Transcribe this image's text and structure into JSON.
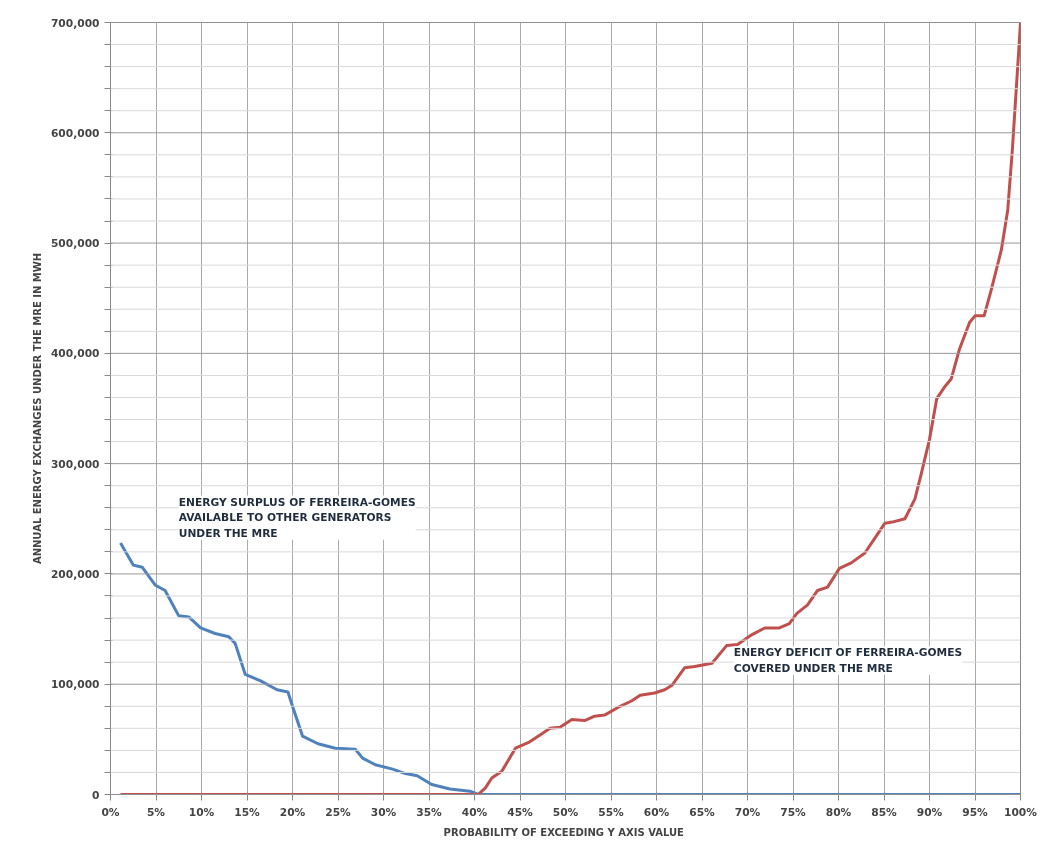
{
  "chart_data": {
    "type": "line",
    "xlabel": "PROBABILITY OF EXCEEDING  Y AXIS VALUE",
    "ylabel": "ANNUAL ENERGY EXCHANGES UNDER THE MRE IN MWH",
    "annotations": [
      "ENERGY SURPLUS OF FERREIRA-GOMES\nAVAILABLE TO OTHER GENERATORS\nUNDER THE MRE",
      "ENERGY DEFICIT OF FERREIRA-GOMES\nCOVERED UNDER THE MRE"
    ],
    "series": [
      {
        "color": "#4f81bd",
        "x": [
          1.1,
          2.5,
          3.5,
          4.9,
          6,
          7.5,
          8.6,
          9.9,
          11.5,
          13,
          13.7,
          14.8,
          16.5,
          18.3,
          19.5,
          20,
          21.1,
          22.8,
          24.7,
          26.9,
          27.7,
          29.1,
          31,
          32.4,
          33.7,
          35.3,
          37.3,
          39.5,
          40.4,
          100
        ],
        "values": [
          228000,
          208000,
          206000,
          190000,
          185000,
          162000,
          161000,
          151000,
          146000,
          143000,
          137000,
          109000,
          103000,
          95000,
          93000,
          80000,
          53000,
          46000,
          42000,
          41000,
          33000,
          27000,
          23000,
          19000,
          17000,
          9000,
          5000,
          3000,
          0,
          0
        ]
      },
      {
        "color": "#c0504d",
        "x": [
          1.1,
          40.4,
          41.2,
          41.9,
          43,
          44.5,
          45.9,
          47.2,
          48.3,
          49.4,
          50.7,
          52.1,
          53.2,
          54.3,
          56,
          57.3,
          58.2,
          59.8,
          60.9,
          61.7,
          63.1,
          64.2,
          66.1,
          67.7,
          68.9,
          70.5,
          71.9,
          73.5,
          74.6,
          75.4,
          76.6,
          77.7,
          78.8,
          80.1,
          81.4,
          82.9,
          84.2,
          85.1,
          85.9,
          87.3,
          88.4,
          89.1,
          90,
          90.8,
          91.7,
          92.4,
          93.3,
          94.4,
          95,
          96,
          96.8,
          97.9,
          98.6,
          99.1,
          99.6,
          100
        ],
        "values": [
          0,
          0,
          6000,
          15000,
          21000,
          42000,
          47000,
          54000,
          60000,
          61000,
          68000,
          67000,
          71000,
          72000,
          80000,
          85000,
          90000,
          92000,
          95000,
          99000,
          115000,
          116000,
          119000,
          135000,
          136000,
          145000,
          151000,
          151000,
          155000,
          164000,
          172000,
          185000,
          188000,
          205000,
          210000,
          219000,
          235000,
          246000,
          247000,
          250000,
          268000,
          291000,
          322000,
          359000,
          370000,
          377000,
          404000,
          428000,
          434000,
          434000,
          458000,
          494000,
          530000,
          584000,
          648000,
          700000
        ]
      }
    ],
    "xlim": [
      0,
      100
    ],
    "xticks": [
      {
        "value": 0,
        "label": "0%"
      },
      {
        "value": 5,
        "label": "5%"
      },
      {
        "value": 10,
        "label": "10%"
      },
      {
        "value": 15,
        "label": "15%"
      },
      {
        "value": 20,
        "label": "20%"
      },
      {
        "value": 25,
        "label": "25%"
      },
      {
        "value": 30,
        "label": "30%"
      },
      {
        "value": 35,
        "label": "35%"
      },
      {
        "value": 40,
        "label": "40%"
      },
      {
        "value": 45,
        "label": "45%"
      },
      {
        "value": 50,
        "label": "50%"
      },
      {
        "value": 55,
        "label": "55%"
      },
      {
        "value": 60,
        "label": "60%"
      },
      {
        "value": 65,
        "label": "65%"
      },
      {
        "value": 70,
        "label": "70%"
      },
      {
        "value": 75,
        "label": "75%"
      },
      {
        "value": 80,
        "label": "80%"
      },
      {
        "value": 85,
        "label": "85%"
      },
      {
        "value": 90,
        "label": "90%"
      },
      {
        "value": 95,
        "label": "95%"
      },
      {
        "value": 100,
        "label": "100%"
      }
    ],
    "ylim": [
      0,
      700000
    ],
    "yticks": [
      0,
      {
        "value": 20000,
        "label": null
      },
      {
        "value": 40000,
        "label": null
      },
      {
        "value": 60000,
        "label": null
      },
      {
        "value": 80000,
        "label": null
      },
      {
        "value": 100000,
        "label": "100,000"
      },
      {
        "value": 120000,
        "label": null
      },
      {
        "value": 140000,
        "label": null
      },
      {
        "value": 160000,
        "label": null
      },
      {
        "value": 180000,
        "label": null
      },
      {
        "value": 200000,
        "label": "200,000"
      },
      {
        "value": 220000,
        "label": null
      },
      {
        "value": 240000,
        "label": null
      },
      {
        "value": 260000,
        "label": null
      },
      {
        "value": 280000,
        "label": null
      },
      {
        "value": 300000,
        "label": "300,000"
      },
      {
        "value": 320000,
        "label": null
      },
      {
        "value": 340000,
        "label": null
      },
      {
        "value": 360000,
        "label": null
      },
      {
        "value": 380000,
        "label": null
      },
      {
        "value": 400000,
        "label": "400,000"
      },
      {
        "value": 420000,
        "label": null
      },
      {
        "value": 440000,
        "label": null
      },
      {
        "value": 460000,
        "label": null
      },
      {
        "value": 480000,
        "label": null
      },
      {
        "value": 500000,
        "label": "500,000"
      },
      {
        "value": 520000,
        "label": null
      },
      {
        "value": 540000,
        "label": null
      },
      {
        "value": 560000,
        "label": null
      },
      {
        "value": 580000,
        "label": null
      },
      {
        "value": 600000,
        "label": "600,000"
      },
      {
        "value": 620000,
        "label": null
      },
      {
        "value": 640000,
        "label": null
      },
      {
        "value": 660000,
        "label": null
      },
      {
        "value": 680000,
        "label": null
      },
      {
        "value": 700000,
        "label": "700,000"
      }
    ],
    "grid": true
  }
}
